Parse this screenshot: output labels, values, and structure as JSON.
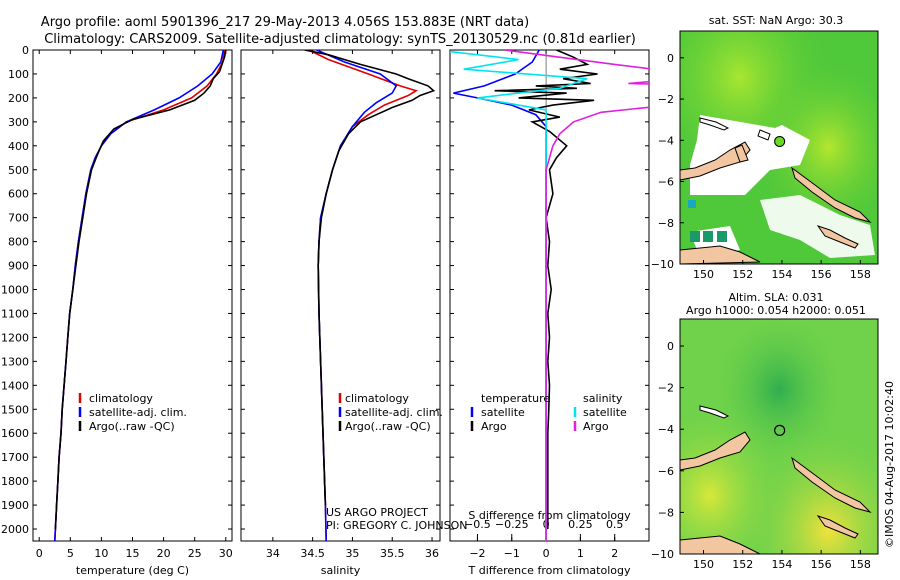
{
  "header": {
    "line1": "Argo profile: aoml 5901396_217 29-May-2013 4.056S 153.883E (NRT data)",
    "line2": "Climatology: CARS2009. Satellite-adjusted climatology: synTS_20130529.nc (0.81d earlier)"
  },
  "colors": {
    "climatology": "#e00000",
    "satellite": "#0000ff",
    "argo": "#000000",
    "satellite_salinity": "#00e5ee",
    "argo_salinity": "#e020e0",
    "land": "#f2c6a0"
  },
  "credit": {
    "line1": "US ARGO PROJECT",
    "line2": "PI: GREGORY C. JOHNSON"
  },
  "stamp": "©IMOS 04-Aug-2017 10:02:40",
  "chart_data": [
    {
      "id": "temperature",
      "type": "line",
      "xlabel": "temperature (deg C)",
      "ylabel": "",
      "xlim": [
        -1,
        31
      ],
      "ylim": [
        2050,
        0
      ],
      "xticks": [
        0,
        5,
        10,
        15,
        20,
        25,
        30
      ],
      "yticks": [
        0,
        100,
        200,
        300,
        400,
        500,
        600,
        700,
        800,
        900,
        1000,
        1100,
        1200,
        1300,
        1400,
        1500,
        1600,
        1700,
        1800,
        1900,
        2000
      ],
      "legend": {
        "position": "lower-middle",
        "entries": [
          "climatology",
          "satellite-adj. clim.",
          "Argo(..raw -QC)"
        ]
      },
      "series": [
        {
          "name": "climatology",
          "color": "#e00000",
          "points": [
            [
              29.8,
              0
            ],
            [
              29.5,
              50
            ],
            [
              28.5,
              100
            ],
            [
              27,
              150
            ],
            [
              24.5,
              200
            ],
            [
              20,
              250
            ],
            [
              14,
              300
            ],
            [
              11.5,
              350
            ],
            [
              10,
              400
            ],
            [
              9,
              450
            ],
            [
              8.3,
              500
            ],
            [
              7.5,
              600
            ],
            [
              6.9,
              700
            ],
            [
              6.3,
              800
            ],
            [
              5.8,
              900
            ],
            [
              5.4,
              1000
            ],
            [
              4.9,
              1100
            ],
            [
              4.6,
              1200
            ],
            [
              4.3,
              1300
            ],
            [
              4,
              1400
            ],
            [
              3.7,
              1500
            ],
            [
              3.5,
              1600
            ],
            [
              3.2,
              1700
            ],
            [
              3,
              1800
            ],
            [
              2.8,
              1900
            ],
            [
              2.6,
              2000
            ],
            [
              2.5,
              2050
            ]
          ]
        },
        {
          "name": "satellite-adj. clim.",
          "color": "#0000ff",
          "points": [
            [
              29.6,
              0
            ],
            [
              29.2,
              50
            ],
            [
              27.8,
              100
            ],
            [
              25.5,
              150
            ],
            [
              22.5,
              200
            ],
            [
              18.5,
              250
            ],
            [
              14,
              300
            ],
            [
              11.5,
              350
            ],
            [
              10,
              400
            ],
            [
              9,
              450
            ],
            [
              8.3,
              500
            ],
            [
              7.5,
              600
            ],
            [
              6.9,
              700
            ],
            [
              6.3,
              800
            ],
            [
              5.8,
              900
            ],
            [
              5.4,
              1000
            ],
            [
              4.9,
              1100
            ],
            [
              4.6,
              1200
            ],
            [
              4.3,
              1300
            ],
            [
              4,
              1400
            ],
            [
              3.7,
              1500
            ],
            [
              3.5,
              1600
            ],
            [
              3.2,
              1700
            ],
            [
              3,
              1800
            ],
            [
              2.8,
              1900
            ],
            [
              2.6,
              2000
            ],
            [
              2.5,
              2050
            ]
          ]
        },
        {
          "name": "Argo(..raw -QC)",
          "color": "#000000",
          "points": [
            [
              30,
              0
            ],
            [
              29.8,
              30
            ],
            [
              29.4,
              60
            ],
            [
              29,
              90
            ],
            [
              28,
              120
            ],
            [
              27.5,
              150
            ],
            [
              26.5,
              180
            ],
            [
              25,
              210
            ],
            [
              21,
              250
            ],
            [
              15,
              290
            ],
            [
              12,
              330
            ],
            [
              10.3,
              380
            ],
            [
              9.3,
              440
            ],
            [
              8.4,
              500
            ],
            [
              7.6,
              600
            ],
            [
              7,
              700
            ],
            [
              6.4,
              800
            ],
            [
              5.9,
              900
            ],
            [
              5.4,
              1000
            ],
            [
              4.9,
              1100
            ],
            [
              4.6,
              1200
            ],
            [
              4.3,
              1300
            ],
            [
              4,
              1400
            ],
            [
              3.7,
              1500
            ],
            [
              3.5,
              1600
            ],
            [
              3.2,
              1700
            ],
            [
              3,
              1800
            ],
            [
              2.8,
              1900
            ],
            [
              2.6,
              2000
            ]
          ]
        }
      ]
    },
    {
      "id": "salinity",
      "type": "line",
      "xlabel": "salinity",
      "ylabel": "",
      "xlim": [
        33.6,
        36.1
      ],
      "ylim": [
        2050,
        0
      ],
      "xticks": [
        34,
        34.5,
        35,
        35.5,
        36
      ],
      "legend": {
        "position": "lower-middle",
        "entries": [
          "climatology",
          "satellite-adj. clim.",
          "Argo(..raw -QC)"
        ]
      },
      "series": [
        {
          "name": "climatology",
          "color": "#e00000",
          "points": [
            [
              34.45,
              0
            ],
            [
              34.7,
              40
            ],
            [
              35.2,
              100
            ],
            [
              35.6,
              150
            ],
            [
              35.8,
              170
            ],
            [
              35.7,
              190
            ],
            [
              35.4,
              230
            ],
            [
              35.2,
              270
            ],
            [
              35,
              320
            ],
            [
              34.85,
              400
            ],
            [
              34.75,
              500
            ],
            [
              34.67,
              600
            ],
            [
              34.6,
              700
            ],
            [
              34.58,
              800
            ],
            [
              34.57,
              900
            ],
            [
              34.58,
              1100
            ],
            [
              34.6,
              1300
            ],
            [
              34.62,
              1500
            ],
            [
              34.64,
              1700
            ],
            [
              34.66,
              1900
            ],
            [
              34.67,
              2050
            ]
          ]
        },
        {
          "name": "satellite-adj. clim.",
          "color": "#0000ff",
          "points": [
            [
              34.55,
              0
            ],
            [
              34.9,
              50
            ],
            [
              35.35,
              100
            ],
            [
              35.55,
              150
            ],
            [
              35.5,
              180
            ],
            [
              35.3,
              220
            ],
            [
              35.15,
              260
            ],
            [
              35,
              320
            ],
            [
              34.85,
              400
            ],
            [
              34.75,
              500
            ],
            [
              34.67,
              600
            ],
            [
              34.6,
              700
            ],
            [
              34.58,
              800
            ],
            [
              34.57,
              900
            ],
            [
              34.58,
              1100
            ],
            [
              34.6,
              1300
            ],
            [
              34.62,
              1500
            ],
            [
              34.64,
              1700
            ],
            [
              34.66,
              1900
            ],
            [
              34.67,
              2050
            ]
          ]
        },
        {
          "name": "Argo(..raw -QC)",
          "color": "#000000",
          "points": [
            [
              34.4,
              0
            ],
            [
              34.7,
              20
            ],
            [
              35.1,
              60
            ],
            [
              35.55,
              100
            ],
            [
              35.7,
              120
            ],
            [
              35.95,
              150
            ],
            [
              36.02,
              170
            ],
            [
              35.85,
              190
            ],
            [
              35.75,
              210
            ],
            [
              35.5,
              240
            ],
            [
              35.3,
              270
            ],
            [
              35.1,
              300
            ],
            [
              34.95,
              350
            ],
            [
              34.83,
              420
            ],
            [
              34.75,
              500
            ],
            [
              34.67,
              600
            ],
            [
              34.61,
              700
            ],
            [
              34.58,
              800
            ],
            [
              34.57,
              900
            ],
            [
              34.58,
              1100
            ],
            [
              34.6,
              1300
            ],
            [
              34.62,
              1500
            ],
            [
              34.64,
              1700
            ],
            [
              34.66,
              1900
            ]
          ]
        }
      ]
    },
    {
      "id": "difference",
      "type": "line",
      "xlabel": "T difference from climatology",
      "xlabel_top": "S difference from climatology",
      "xlim": [
        -2.8,
        3.0
      ],
      "ylim": [
        2050,
        0
      ],
      "xticks": [
        -2,
        -1,
        0,
        1,
        2
      ],
      "xticks_salinity": [
        -0.5,
        -0.25,
        0,
        0.25,
        0.5
      ],
      "legend_temperature": {
        "title": "temperature",
        "entries": [
          "satellite",
          "Argo"
        ]
      },
      "legend_salinity": {
        "title": "salinity",
        "entries": [
          "satellite",
          "Argo"
        ]
      },
      "series": [
        {
          "name": "temperature satellite",
          "color": "#0000ff",
          "points": [
            [
              -0.2,
              0
            ],
            [
              -0.4,
              50
            ],
            [
              -0.9,
              100
            ],
            [
              -1.8,
              150
            ],
            [
              -2.7,
              180
            ],
            [
              -2,
              200
            ],
            [
              -1,
              230
            ],
            [
              -0.3,
              270
            ],
            [
              0,
              320
            ],
            [
              0,
              400
            ],
            [
              0,
              600
            ],
            [
              0,
              800
            ],
            [
              0,
              1000
            ],
            [
              0,
              2050
            ]
          ]
        },
        {
          "name": "temperature Argo",
          "color": "#000000",
          "points": [
            [
              0.3,
              0
            ],
            [
              0.8,
              30
            ],
            [
              1.2,
              60
            ],
            [
              0.4,
              80
            ],
            [
              1.5,
              100
            ],
            [
              0.5,
              120
            ],
            [
              1.3,
              140
            ],
            [
              -0.3,
              150
            ],
            [
              0.9,
              160
            ],
            [
              -1.5,
              170
            ],
            [
              0.6,
              180
            ],
            [
              -0.8,
              200
            ],
            [
              1.4,
              210
            ],
            [
              0.2,
              230
            ],
            [
              -0.5,
              250
            ],
            [
              0.4,
              280
            ],
            [
              -0.4,
              300
            ],
            [
              0.1,
              340
            ],
            [
              0.6,
              400
            ],
            [
              0.3,
              450
            ],
            [
              0.1,
              500
            ],
            [
              0.2,
              600
            ],
            [
              0,
              700
            ],
            [
              0.1,
              800
            ],
            [
              0.05,
              900
            ],
            [
              0.15,
              1000
            ],
            [
              0.05,
              1100
            ],
            [
              0.1,
              1200
            ],
            [
              0.05,
              1300
            ],
            [
              0.1,
              1400
            ],
            [
              0.08,
              1500
            ],
            [
              0.05,
              1600
            ],
            [
              0.05,
              1700
            ],
            [
              0.05,
              1800
            ],
            [
              0.05,
              1900
            ],
            [
              0.05,
              2000
            ]
          ]
        },
        {
          "name": "salinity satellite",
          "color": "#00e5ee",
          "points": [
            [
              -0.8,
              0
            ],
            [
              -0.2,
              40
            ],
            [
              -0.6,
              80
            ],
            [
              0.3,
              120
            ],
            [
              0.1,
              160
            ],
            [
              -0.5,
              200
            ],
            [
              0,
              250
            ],
            [
              0,
              300
            ],
            [
              0,
              400
            ],
            [
              0,
              600
            ],
            [
              0,
              800
            ],
            [
              0,
              1000
            ],
            [
              0,
              2050
            ]
          ]
        },
        {
          "name": "salinity Argo",
          "color": "#e020e0",
          "points": [
            [
              -0.3,
              0
            ],
            [
              0.5,
              60
            ],
            [
              1.2,
              110
            ],
            [
              0.6,
              140
            ],
            [
              2.2,
              160
            ],
            [
              1.0,
              180
            ],
            [
              1.8,
              200
            ],
            [
              0.9,
              230
            ],
            [
              0.4,
              260
            ],
            [
              0.2,
              300
            ],
            [
              0.1,
              350
            ],
            [
              0.05,
              400
            ],
            [
              0,
              500
            ],
            [
              0,
              2050
            ]
          ]
        }
      ]
    },
    {
      "id": "sst-map",
      "type": "heatmap",
      "title": "sat. SST: NaN Argo: 30.3",
      "xlim": [
        148.8,
        158.9
      ],
      "ylim": [
        -10,
        1.3
      ],
      "xticks": [
        150,
        152,
        154,
        156,
        158
      ],
      "yticks": [
        0,
        -2,
        -4,
        -6,
        -8,
        -10
      ],
      "argo_position": [
        153.883,
        -4.056
      ]
    },
    {
      "id": "sla-map",
      "type": "heatmap",
      "title_line1": "Altim. SLA: 0.031",
      "title_line2": "Argo h1000: 0.054 h2000: 0.051",
      "xlim": [
        148.8,
        158.9
      ],
      "ylim": [
        -10,
        1.3
      ],
      "xticks": [
        150,
        152,
        154,
        156,
        158
      ],
      "yticks": [
        0,
        -2,
        -4,
        -6,
        -8,
        -10
      ],
      "argo_position": [
        153.883,
        -4.056
      ]
    }
  ]
}
